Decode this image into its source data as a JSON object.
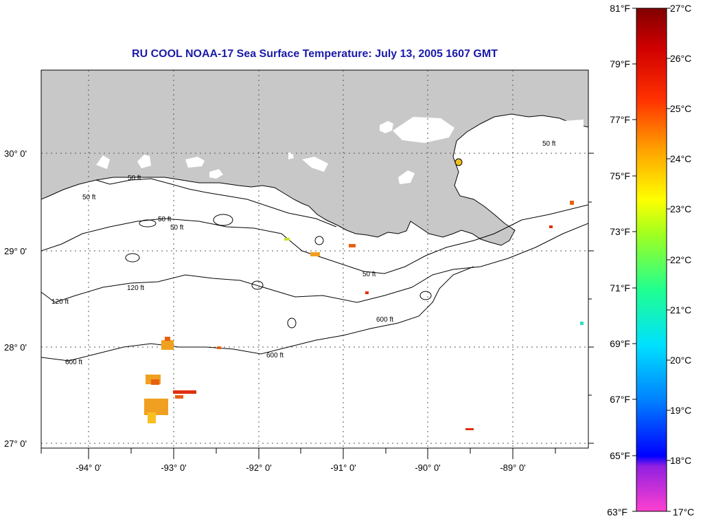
{
  "title": "RU COOL  NOAA-17  Sea Surface Temperature:  July 13, 2005 1607 GMT",
  "lat_labels": [
    "30° 0'",
    "29° 0'",
    "28° 0'",
    "27° 0'"
  ],
  "lon_labels": [
    "-94° 0'",
    "-93° 0'",
    "-92° 0'",
    "-91° 0'",
    "-90° 0'",
    "-89° 0'"
  ],
  "contour_labels": {
    "c50": "50 ft",
    "c120": "120 ft",
    "c600": "600 ft"
  },
  "colorbar": {
    "fahrenheit": [
      "81°F",
      "79°F",
      "77°F",
      "75°F",
      "73°F",
      "71°F",
      "69°F",
      "67°F",
      "65°F",
      "63°F"
    ],
    "celsius": [
      "27°C",
      "26°C",
      "25°C",
      "24°C",
      "23°C",
      "22°C",
      "21°C",
      "20°C",
      "19°C",
      "18°C",
      "17°C"
    ],
    "range_c": [
      17,
      27
    ]
  },
  "colors": {
    "land": "#c8c8c8",
    "water": "#ffffff",
    "title": "#1a1aa8",
    "warm_patch": "#f0a020",
    "hot_patch": "#e03010"
  }
}
